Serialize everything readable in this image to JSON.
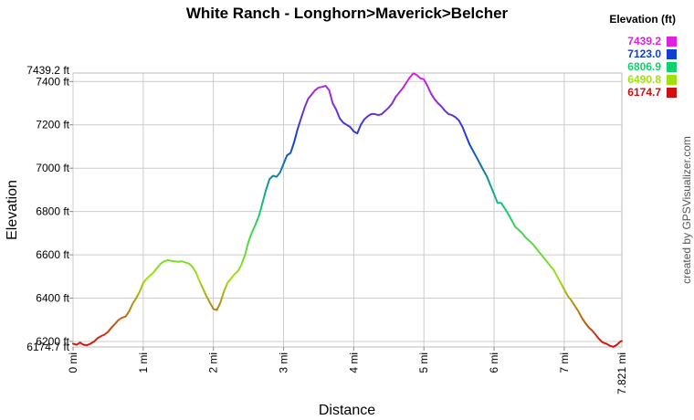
{
  "chart_data": {
    "type": "line",
    "title": "White Ranch - Longhorn>Maverick>Belcher",
    "xlabel": "Distance",
    "ylabel": "Elevation",
    "xlim": [
      0,
      7.821
    ],
    "ylim": [
      6174.7,
      7439.2
    ],
    "x_ticks": [
      0,
      1,
      2,
      3,
      4,
      5,
      6,
      7
    ],
    "x_tick_labels": [
      "0 mi",
      "1 mi",
      "2 mi",
      "3 mi",
      "4 mi",
      "5 mi",
      "6 mi",
      "7 mi"
    ],
    "x_end_label": "7.821 mi",
    "y_ticks": [
      6200,
      6400,
      6600,
      6800,
      7000,
      7200,
      7400
    ],
    "y_tick_labels": [
      "6200 ft",
      "6400 ft",
      "6600 ft",
      "6800 ft",
      "7000 ft",
      "7200 ft",
      "7400 ft"
    ],
    "y_min_label": "6174.7 ft",
    "y_max_label": "7439.2 ft",
    "grid": true,
    "legend_title": "Elevation (ft)",
    "legend_placement": "top-right",
    "legend": [
      {
        "value": "7439.2",
        "color": "#e020e0"
      },
      {
        "value": "7123.0",
        "color": "#1040d0"
      },
      {
        "value": "6806.9",
        "color": "#10d070"
      },
      {
        "value": "6490.8",
        "color": "#a0e010"
      },
      {
        "value": "6174.7",
        "color": "#d01010"
      }
    ],
    "credit": "created by GPSVisualizer.com",
    "x": [
      0,
      0.05,
      0.1,
      0.15,
      0.2,
      0.25,
      0.3,
      0.35,
      0.4,
      0.45,
      0.5,
      0.55,
      0.6,
      0.65,
      0.7,
      0.75,
      0.8,
      0.85,
      0.9,
      0.95,
      1.0,
      1.05,
      1.1,
      1.15,
      1.2,
      1.25,
      1.3,
      1.35,
      1.4,
      1.45,
      1.5,
      1.55,
      1.6,
      1.65,
      1.7,
      1.75,
      1.8,
      1.85,
      1.9,
      1.95,
      2.0,
      2.05,
      2.1,
      2.15,
      2.2,
      2.25,
      2.3,
      2.35,
      2.4,
      2.45,
      2.5,
      2.55,
      2.6,
      2.65,
      2.7,
      2.75,
      2.8,
      2.85,
      2.9,
      2.95,
      3.0,
      3.05,
      3.1,
      3.15,
      3.2,
      3.25,
      3.3,
      3.35,
      3.4,
      3.45,
      3.5,
      3.55,
      3.6,
      3.65,
      3.7,
      3.75,
      3.8,
      3.85,
      3.9,
      3.95,
      4.0,
      4.05,
      4.1,
      4.15,
      4.2,
      4.25,
      4.3,
      4.35,
      4.4,
      4.45,
      4.5,
      4.55,
      4.6,
      4.65,
      4.7,
      4.75,
      4.8,
      4.85,
      4.9,
      4.95,
      5.0,
      5.05,
      5.1,
      5.15,
      5.2,
      5.25,
      5.3,
      5.35,
      5.4,
      5.45,
      5.5,
      5.55,
      5.6,
      5.65,
      5.7,
      5.75,
      5.8,
      5.85,
      5.9,
      5.95,
      6.0,
      6.05,
      6.1,
      6.15,
      6.2,
      6.25,
      6.3,
      6.35,
      6.4,
      6.45,
      6.5,
      6.55,
      6.6,
      6.65,
      6.7,
      6.75,
      6.8,
      6.85,
      6.9,
      6.95,
      7.0,
      7.05,
      7.1,
      7.15,
      7.2,
      7.25,
      7.3,
      7.35,
      7.4,
      7.45,
      7.5,
      7.55,
      7.6,
      7.65,
      7.7,
      7.75,
      7.8,
      7.821
    ],
    "y": [
      6190,
      6185,
      6195,
      6185,
      6183,
      6190,
      6200,
      6215,
      6225,
      6232,
      6245,
      6265,
      6282,
      6300,
      6310,
      6315,
      6340,
      6375,
      6400,
      6430,
      6470,
      6490,
      6505,
      6520,
      6540,
      6560,
      6570,
      6575,
      6572,
      6570,
      6568,
      6570,
      6565,
      6560,
      6545,
      6520,
      6480,
      6445,
      6410,
      6380,
      6350,
      6345,
      6380,
      6430,
      6470,
      6490,
      6510,
      6525,
      6555,
      6600,
      6660,
      6705,
      6740,
      6780,
      6840,
      6900,
      6950,
      6965,
      6960,
      6980,
      7020,
      7060,
      7070,
      7120,
      7180,
      7230,
      7280,
      7320,
      7340,
      7360,
      7372,
      7375,
      7380,
      7360,
      7300,
      7270,
      7230,
      7210,
      7200,
      7190,
      7170,
      7160,
      7200,
      7225,
      7240,
      7250,
      7250,
      7245,
      7250,
      7265,
      7280,
      7300,
      7330,
      7350,
      7370,
      7395,
      7420,
      7438,
      7430,
      7415,
      7410,
      7380,
      7345,
      7320,
      7300,
      7285,
      7265,
      7250,
      7245,
      7235,
      7220,
      7190,
      7150,
      7110,
      7080,
      7050,
      7020,
      6990,
      6960,
      6920,
      6880,
      6840,
      6840,
      6815,
      6790,
      6760,
      6730,
      6715,
      6700,
      6680,
      6665,
      6650,
      6630,
      6610,
      6590,
      6570,
      6550,
      6530,
      6500,
      6470,
      6440,
      6410,
      6390,
      6365,
      6340,
      6310,
      6285,
      6265,
      6250,
      6230,
      6210,
      6195,
      6190,
      6180,
      6175,
      6185,
      6200,
      6202
    ]
  }
}
